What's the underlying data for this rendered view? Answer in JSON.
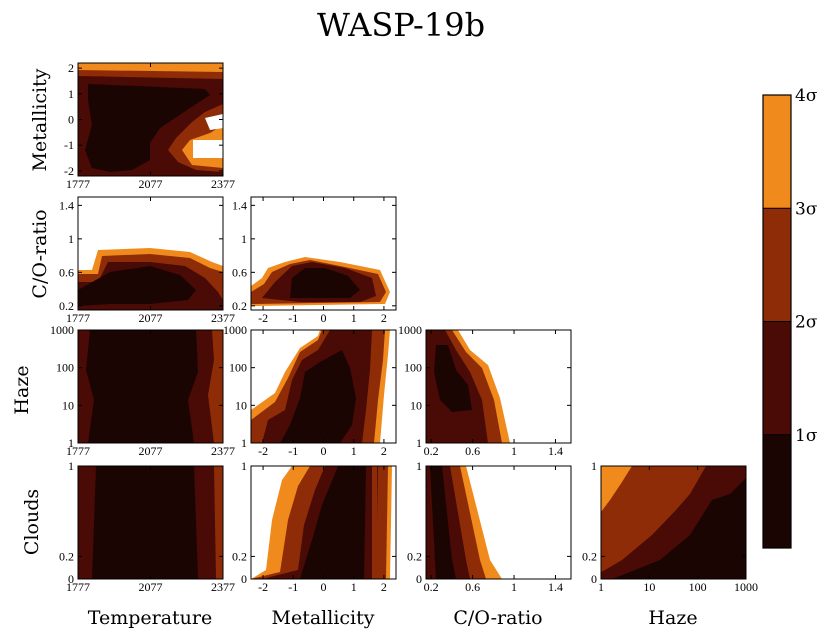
{
  "title": "WASP-19b",
  "colors": {
    "level_1sigma": "#1a0503",
    "level_2sigma": "#4a0a05",
    "level_3sigma": "#8e2c08",
    "level_4sigma": "#f08a1c",
    "frame": "#000000"
  },
  "colorbar": {
    "ticks": [
      "1σ",
      "2σ",
      "3σ",
      "4σ"
    ],
    "levels": [
      1,
      2,
      3,
      4
    ]
  },
  "chart_data": {
    "type": "contour-corner",
    "parameters": [
      "Temperature",
      "Metallicity",
      "C/O-ratio",
      "Haze",
      "Clouds"
    ],
    "panels": [
      {
        "x": "Temperature",
        "y": "Metallicity",
        "xlim": [
          1777,
          2377
        ],
        "ylim": [
          -2.2,
          2.2
        ],
        "xticks": [
          "1777",
          "2077",
          "2377"
        ],
        "yticks": [
          "-2",
          "-1",
          "0",
          "1",
          "2"
        ],
        "ylabel": "Metallicity"
      },
      {
        "x": "Temperature",
        "y": "C/O-ratio",
        "xlim": [
          1777,
          2377
        ],
        "ylim": [
          0.15,
          1.5
        ],
        "xticks": [
          "1777",
          "2077",
          "2377"
        ],
        "yticks": [
          "0.2",
          "0.6",
          "1",
          "1.4"
        ],
        "ylabel": "C/O-ratio"
      },
      {
        "x": "Metallicity",
        "y": "C/O-ratio",
        "xlim": [
          -2.4,
          2.4
        ],
        "ylim": [
          0.15,
          1.5
        ],
        "xticks": [
          "-2",
          "-1",
          "0",
          "1",
          "2"
        ],
        "yticks": [
          "0.2",
          "0.6",
          "1",
          "1.4"
        ]
      },
      {
        "x": "Temperature",
        "y": "Haze",
        "xlim": [
          1777,
          2377
        ],
        "ylim": [
          1,
          1000
        ],
        "yscale": "log",
        "xticks": [
          "1777",
          "2077",
          "2377"
        ],
        "yticks": [
          "1",
          "10",
          "100",
          "1000"
        ],
        "ylabel": "Haze"
      },
      {
        "x": "Metallicity",
        "y": "Haze",
        "xlim": [
          -2.4,
          2.4
        ],
        "ylim": [
          1,
          1000
        ],
        "yscale": "log",
        "xticks": [
          "-2",
          "-1",
          "0",
          "1",
          "2"
        ],
        "yticks": [
          "1",
          "10",
          "100",
          "1000"
        ]
      },
      {
        "x": "C/O-ratio",
        "y": "Haze",
        "xlim": [
          0.15,
          1.55
        ],
        "ylim": [
          1,
          1000
        ],
        "yscale": "log",
        "xticks": [
          "0.2",
          "0.6",
          "1",
          "1.4"
        ],
        "yticks": [
          "1",
          "10",
          "100",
          "1000"
        ]
      },
      {
        "x": "Temperature",
        "y": "Clouds",
        "xlim": [
          1777,
          2377
        ],
        "ylim": [
          0,
          1
        ],
        "xticks": [
          "1777",
          "2077",
          "2377"
        ],
        "yticks": [
          "0",
          "0.2",
          "1"
        ],
        "ylabel": "Clouds",
        "xlabel": "Temperature"
      },
      {
        "x": "Metallicity",
        "y": "Clouds",
        "xlim": [
          -2.4,
          2.4
        ],
        "ylim": [
          0,
          1
        ],
        "xticks": [
          "-2",
          "-1",
          "0",
          "1",
          "2"
        ],
        "yticks": [
          "0",
          "0.2",
          "1"
        ],
        "xlabel": "Metallicity"
      },
      {
        "x": "C/O-ratio",
        "y": "Clouds",
        "xlim": [
          0.15,
          1.55
        ],
        "ylim": [
          0,
          1
        ],
        "xticks": [
          "0.2",
          "0.6",
          "1",
          "1.4"
        ],
        "yticks": [
          "0",
          "0.2",
          "1"
        ],
        "xlabel": "C/O-ratio"
      },
      {
        "x": "Haze",
        "y": "Clouds",
        "xlim": [
          1,
          1000
        ],
        "xscale": "log",
        "ylim": [
          0,
          1
        ],
        "xticks": [
          "1",
          "10",
          "100",
          "1000"
        ],
        "yticks": [
          "0",
          "0.2",
          "1"
        ],
        "xlabel": "Haze"
      }
    ]
  }
}
